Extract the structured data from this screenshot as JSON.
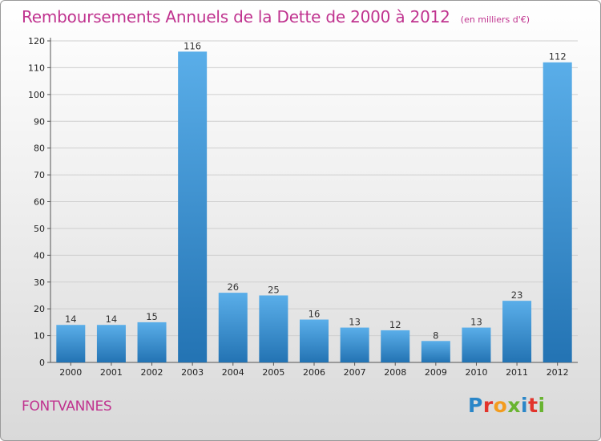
{
  "header": {
    "title": "Remboursements Annuels de la Dette de 2000 à 2012",
    "subtitle": "(en milliers d'€)"
  },
  "footer": {
    "town": "FONTVANNES",
    "logo_letters": [
      {
        "ch": "P",
        "color": "#2a86c8"
      },
      {
        "ch": "r",
        "color": "#e2332b"
      },
      {
        "ch": "o",
        "color": "#f39c1e"
      },
      {
        "ch": "x",
        "color": "#69b431"
      },
      {
        "ch": "i",
        "color": "#2a86c8"
      },
      {
        "ch": "t",
        "color": "#e2332b"
      },
      {
        "ch": "i",
        "color": "#69b431"
      }
    ]
  },
  "colors": {
    "title": "#c0338f",
    "bar_top": "#5aaee9",
    "bar_bottom": "#2373b3"
  },
  "chart_data": {
    "type": "bar",
    "title": "Remboursements Annuels de la Dette de 2000 à 2012",
    "subtitle": "(en milliers d'€)",
    "categories": [
      "2000",
      "2001",
      "2002",
      "2003",
      "2004",
      "2005",
      "2006",
      "2007",
      "2008",
      "2009",
      "2010",
      "2011",
      "2012"
    ],
    "values": [
      14,
      14,
      15,
      116,
      26,
      25,
      16,
      13,
      12,
      8,
      13,
      23,
      112
    ],
    "ylim": [
      0,
      120
    ],
    "yticks": [
      0,
      10,
      20,
      30,
      40,
      50,
      60,
      70,
      80,
      90,
      100,
      110,
      120
    ],
    "grid": true,
    "legend": "none"
  }
}
